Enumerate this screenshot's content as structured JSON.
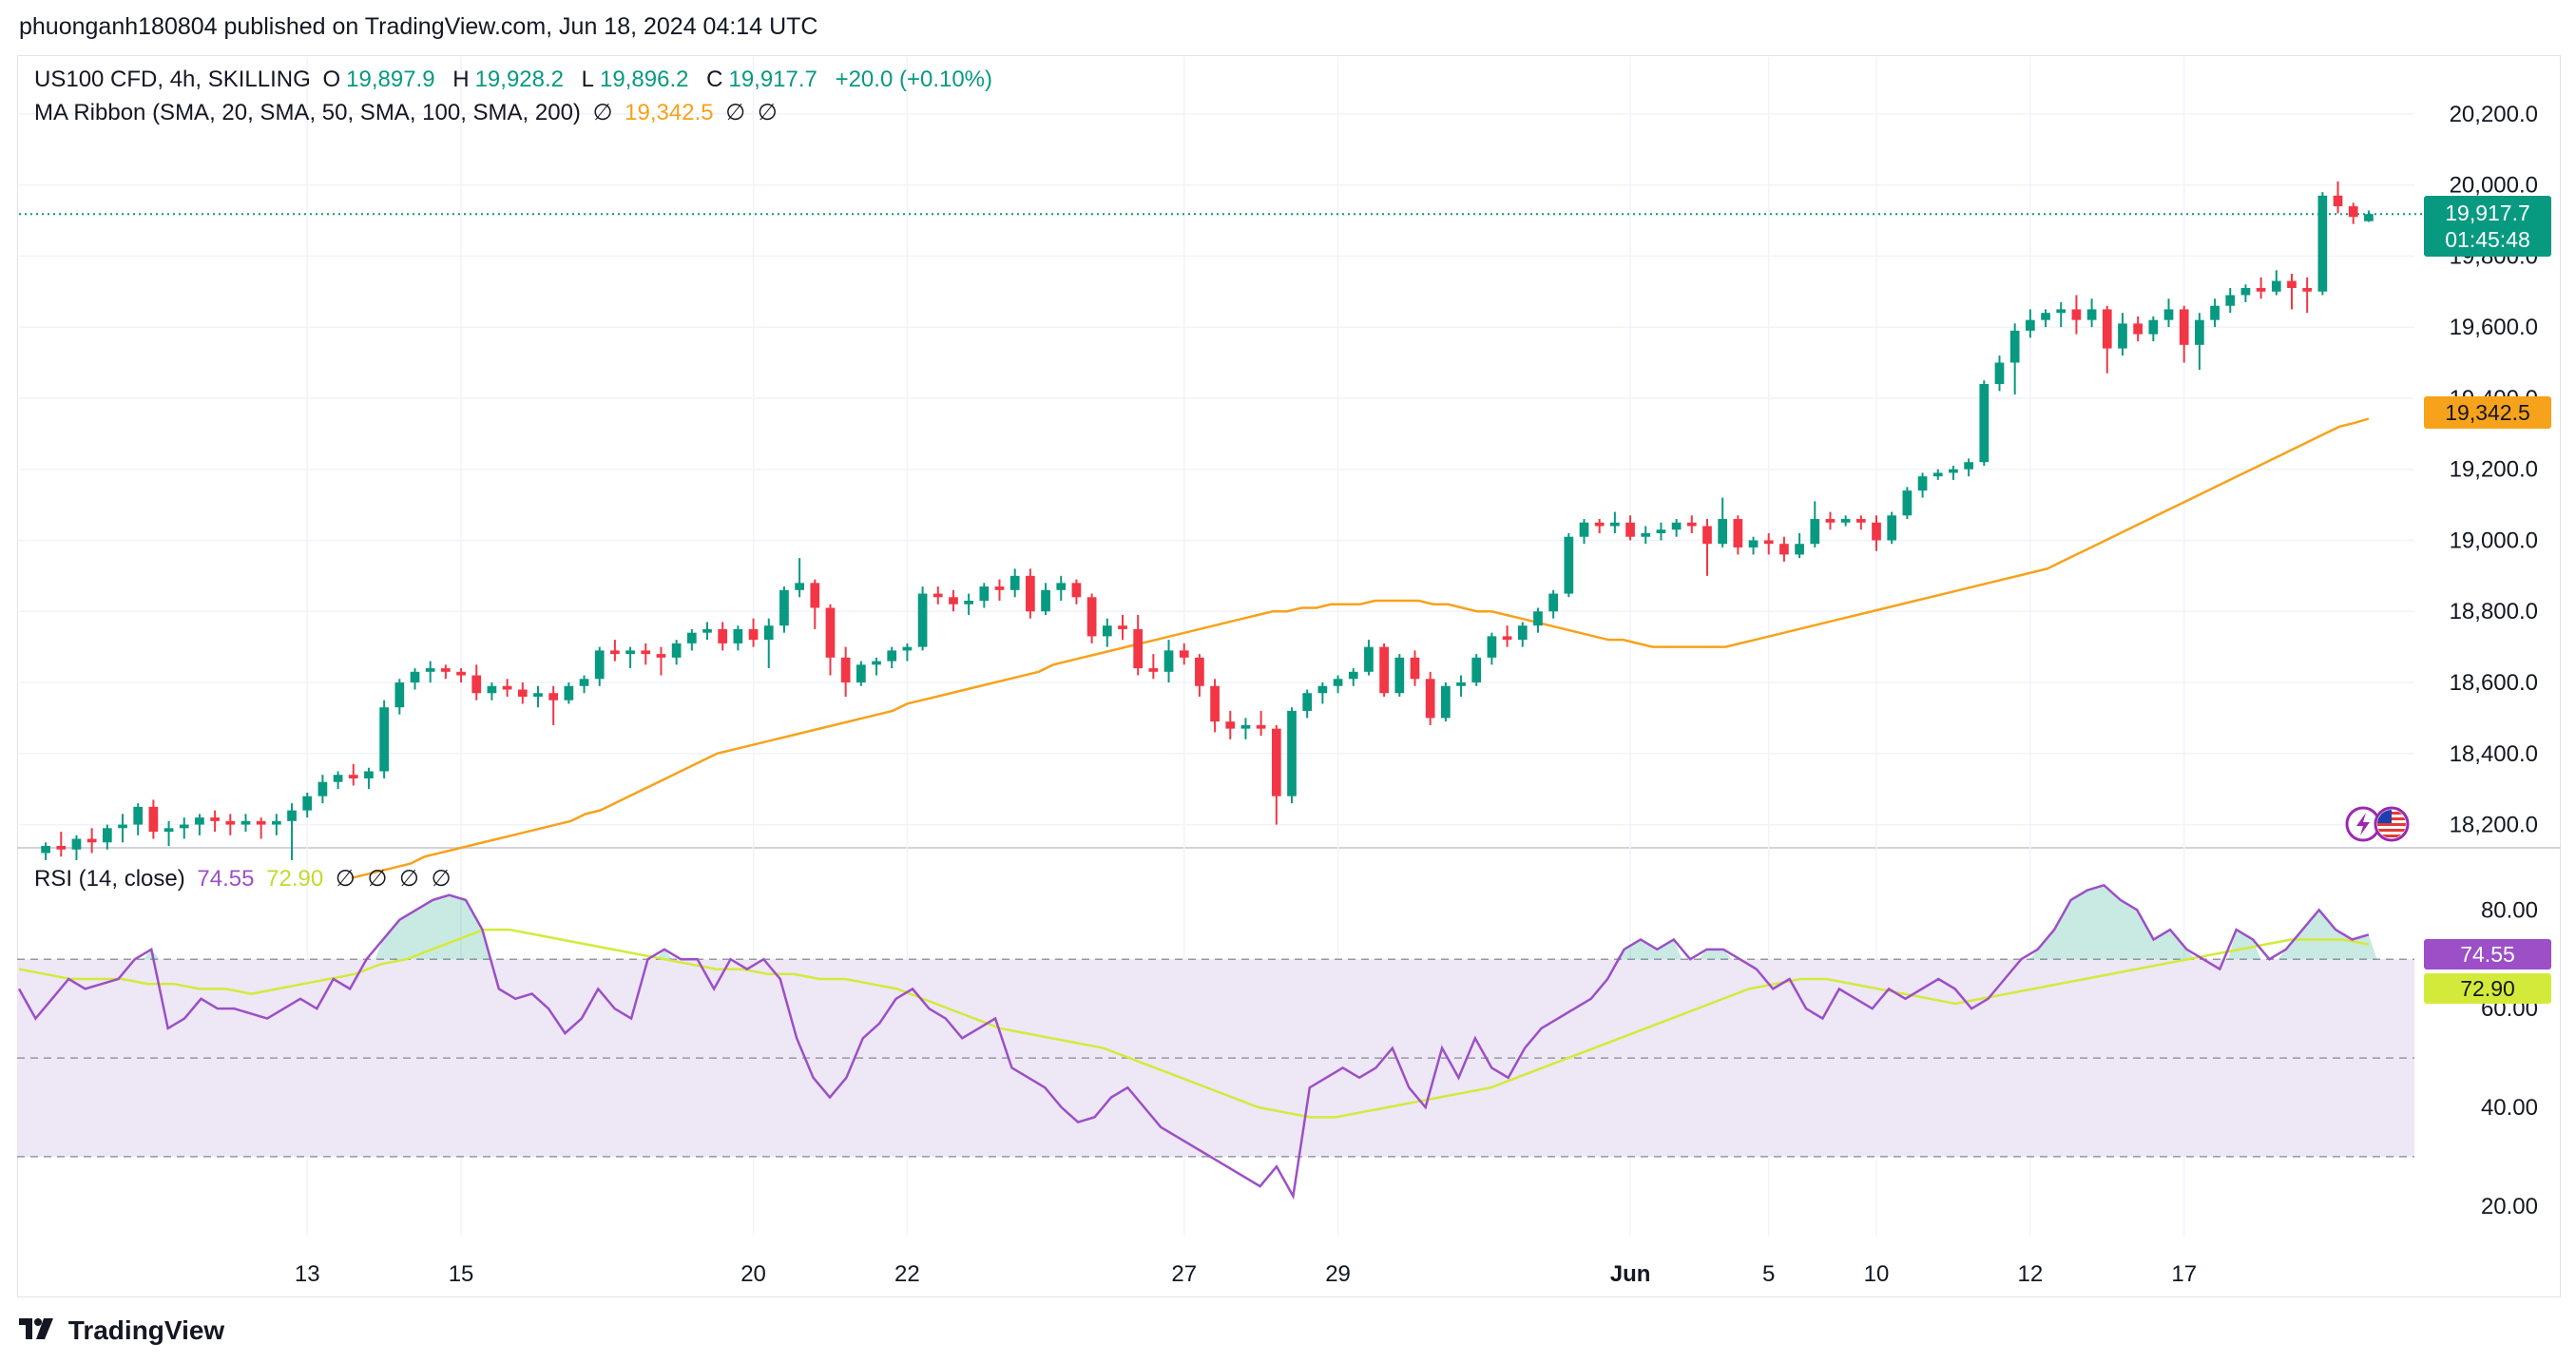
{
  "header": {
    "published": "phuonganh180804 published on TradingView.com, Jun 18, 2024 04:14 UTC"
  },
  "legend": {
    "symbol": "US100 CFD, 4h, SKILLING",
    "o_label": "O",
    "o_value": "19,897.9",
    "h_label": "H",
    "h_value": "19,928.2",
    "l_label": "L",
    "l_value": "19,896.2",
    "c_label": "C",
    "c_value": "19,917.7",
    "change": "+20.0 (+0.10%)",
    "ma_label": "MA Ribbon (SMA, 20, SMA, 50, SMA, 100, SMA, 200)",
    "ma_value": "19,342.5",
    "empty_symbol": "∅"
  },
  "rsi_legend": {
    "label": "RSI (14, close)",
    "rsi": "74.55",
    "ma": "72.90"
  },
  "price_tag": {
    "price": "19,917.7",
    "countdown": "01:45:48"
  },
  "ma_tag": "19,342.5",
  "rsi_tags": {
    "rsi": "74.55",
    "ma": "72.90"
  },
  "footer": {
    "brand": "TradingView",
    "logo": "tradingview-logo"
  },
  "icons": [
    "lightning-icon",
    "us-flag-icon"
  ],
  "colors": {
    "up": "#089981",
    "down": "#f23645",
    "ma": "#f7a21b",
    "rsi": "#9c4fc6",
    "rsi_ma": "#d4ea3a",
    "band": "#ede7f6"
  },
  "chart_data": {
    "type": "candlestick",
    "timeframe": "4h",
    "price_axis": {
      "ticks": [
        "18,200.0",
        "18,400.0",
        "18,600.0",
        "18,800.0",
        "19,000.0",
        "19,200.0",
        "19,400.0",
        "19,600.0",
        "19,800.0",
        "20,000.0",
        "20,200.0"
      ]
    },
    "x_labels": [
      "13",
      "15",
      "20",
      "22",
      "27",
      "29",
      "Jun",
      "5",
      "10",
      "12",
      "17"
    ],
    "candles": [
      [
        18120,
        18150,
        18100,
        18140
      ],
      [
        18140,
        18180,
        18110,
        18130
      ],
      [
        18130,
        18170,
        18100,
        18160
      ],
      [
        18160,
        18190,
        18120,
        18150
      ],
      [
        18150,
        18200,
        18130,
        18190
      ],
      [
        18190,
        18230,
        18150,
        18200
      ],
      [
        18200,
        18260,
        18170,
        18250
      ],
      [
        18250,
        18270,
        18160,
        18180
      ],
      [
        18180,
        18210,
        18140,
        18190
      ],
      [
        18190,
        18220,
        18160,
        18200
      ],
      [
        18200,
        18230,
        18170,
        18220
      ],
      [
        18220,
        18240,
        18180,
        18210
      ],
      [
        18210,
        18230,
        18170,
        18200
      ],
      [
        18200,
        18230,
        18180,
        18210
      ],
      [
        18210,
        18220,
        18160,
        18200
      ],
      [
        18200,
        18230,
        18170,
        18210
      ],
      [
        18210,
        18260,
        18100,
        18240
      ],
      [
        18240,
        18290,
        18220,
        18280
      ],
      [
        18280,
        18340,
        18260,
        18320
      ],
      [
        18320,
        18350,
        18300,
        18340
      ],
      [
        18340,
        18370,
        18310,
        18330
      ],
      [
        18330,
        18360,
        18300,
        18350
      ],
      [
        18350,
        18550,
        18330,
        18530
      ],
      [
        18530,
        18610,
        18510,
        18600
      ],
      [
        18600,
        18640,
        18580,
        18630
      ],
      [
        18630,
        18660,
        18600,
        18640
      ],
      [
        18640,
        18650,
        18610,
        18630
      ],
      [
        18630,
        18640,
        18600,
        18620
      ],
      [
        18620,
        18650,
        18550,
        18570
      ],
      [
        18570,
        18600,
        18550,
        18590
      ],
      [
        18590,
        18610,
        18560,
        18580
      ],
      [
        18580,
        18600,
        18540,
        18560
      ],
      [
        18560,
        18590,
        18530,
        18570
      ],
      [
        18570,
        18590,
        18480,
        18550
      ],
      [
        18550,
        18600,
        18540,
        18590
      ],
      [
        18590,
        18620,
        18570,
        18610
      ],
      [
        18610,
        18700,
        18590,
        18690
      ],
      [
        18690,
        18720,
        18660,
        18680
      ],
      [
        18680,
        18700,
        18640,
        18690
      ],
      [
        18690,
        18710,
        18650,
        18680
      ],
      [
        18680,
        18700,
        18620,
        18670
      ],
      [
        18670,
        18720,
        18650,
        18710
      ],
      [
        18710,
        18750,
        18690,
        18740
      ],
      [
        18740,
        18770,
        18720,
        18750
      ],
      [
        18750,
        18770,
        18690,
        18710
      ],
      [
        18710,
        18760,
        18690,
        18750
      ],
      [
        18750,
        18780,
        18700,
        18720
      ],
      [
        18720,
        18780,
        18640,
        18760
      ],
      [
        18760,
        18870,
        18740,
        18860
      ],
      [
        18860,
        18950,
        18840,
        18880
      ],
      [
        18880,
        18890,
        18750,
        18810
      ],
      [
        18810,
        18820,
        18620,
        18670
      ],
      [
        18670,
        18700,
        18560,
        18600
      ],
      [
        18600,
        18660,
        18590,
        18650
      ],
      [
        18650,
        18670,
        18620,
        18660
      ],
      [
        18660,
        18700,
        18640,
        18690
      ],
      [
        18690,
        18710,
        18660,
        18700
      ],
      [
        18700,
        18870,
        18690,
        18850
      ],
      [
        18850,
        18870,
        18820,
        18840
      ],
      [
        18840,
        18860,
        18800,
        18820
      ],
      [
        18820,
        18850,
        18790,
        18830
      ],
      [
        18830,
        18880,
        18810,
        18870
      ],
      [
        18870,
        18890,
        18830,
        18860
      ],
      [
        18860,
        18920,
        18840,
        18900
      ],
      [
        18900,
        18920,
        18780,
        18800
      ],
      [
        18800,
        18880,
        18790,
        18860
      ],
      [
        18860,
        18900,
        18830,
        18880
      ],
      [
        18880,
        18890,
        18820,
        18840
      ],
      [
        18840,
        18850,
        18710,
        18730
      ],
      [
        18730,
        18780,
        18700,
        18760
      ],
      [
        18760,
        18790,
        18720,
        18750
      ],
      [
        18750,
        18790,
        18620,
        18640
      ],
      [
        18640,
        18680,
        18610,
        18630
      ],
      [
        18630,
        18720,
        18600,
        18690
      ],
      [
        18690,
        18710,
        18650,
        18670
      ],
      [
        18670,
        18680,
        18560,
        18590
      ],
      [
        18590,
        18610,
        18460,
        18490
      ],
      [
        18490,
        18520,
        18440,
        18470
      ],
      [
        18470,
        18500,
        18440,
        18480
      ],
      [
        18480,
        18520,
        18450,
        18470
      ],
      [
        18470,
        18480,
        18200,
        18280
      ],
      [
        18280,
        18530,
        18260,
        18520
      ],
      [
        18520,
        18580,
        18500,
        18570
      ],
      [
        18570,
        18600,
        18540,
        18590
      ],
      [
        18590,
        18620,
        18570,
        18610
      ],
      [
        18610,
        18640,
        18590,
        18630
      ],
      [
        18630,
        18720,
        18620,
        18700
      ],
      [
        18700,
        18710,
        18560,
        18570
      ],
      [
        18570,
        18680,
        18560,
        18670
      ],
      [
        18670,
        18690,
        18590,
        18610
      ],
      [
        18610,
        18630,
        18480,
        18500
      ],
      [
        18500,
        18600,
        18490,
        18590
      ],
      [
        18590,
        18620,
        18560,
        18600
      ],
      [
        18600,
        18680,
        18590,
        18670
      ],
      [
        18670,
        18740,
        18650,
        18730
      ],
      [
        18730,
        18760,
        18700,
        18720
      ],
      [
        18720,
        18770,
        18700,
        18760
      ],
      [
        18760,
        18810,
        18740,
        18800
      ],
      [
        18800,
        18860,
        18780,
        18850
      ],
      [
        18850,
        19020,
        18840,
        19010
      ],
      [
        19010,
        19060,
        18990,
        19050
      ],
      [
        19050,
        19060,
        19020,
        19040
      ],
      [
        19040,
        19080,
        19020,
        19050
      ],
      [
        19050,
        19070,
        19000,
        19010
      ],
      [
        19010,
        19040,
        18990,
        19020
      ],
      [
        19020,
        19050,
        19000,
        19030
      ],
      [
        19030,
        19060,
        19010,
        19050
      ],
      [
        19050,
        19070,
        19020,
        19040
      ],
      [
        19040,
        19060,
        18900,
        18990
      ],
      [
        18990,
        19120,
        18980,
        19060
      ],
      [
        19060,
        19070,
        18960,
        18980
      ],
      [
        18980,
        19010,
        18960,
        19000
      ],
      [
        19000,
        19020,
        18960,
        18990
      ],
      [
        18990,
        19010,
        18940,
        18960
      ],
      [
        18960,
        19020,
        18950,
        18990
      ],
      [
        18990,
        19110,
        18980,
        19060
      ],
      [
        19060,
        19080,
        19030,
        19050
      ],
      [
        19050,
        19070,
        19040,
        19060
      ],
      [
        19060,
        19070,
        19030,
        19050
      ],
      [
        19050,
        19070,
        18970,
        19000
      ],
      [
        19000,
        19080,
        18990,
        19070
      ],
      [
        19070,
        19150,
        19060,
        19140
      ],
      [
        19140,
        19190,
        19120,
        19180
      ],
      [
        19180,
        19200,
        19170,
        19190
      ],
      [
        19190,
        19210,
        19170,
        19200
      ],
      [
        19200,
        19230,
        19180,
        19220
      ],
      [
        19220,
        19450,
        19210,
        19440
      ],
      [
        19440,
        19520,
        19420,
        19500
      ],
      [
        19500,
        19610,
        19410,
        19590
      ],
      [
        19590,
        19650,
        19570,
        19620
      ],
      [
        19620,
        19650,
        19600,
        19640
      ],
      [
        19640,
        19670,
        19600,
        19650
      ],
      [
        19650,
        19690,
        19580,
        19620
      ],
      [
        19620,
        19680,
        19600,
        19650
      ],
      [
        19650,
        19660,
        19470,
        19540
      ],
      [
        19540,
        19640,
        19520,
        19610
      ],
      [
        19610,
        19630,
        19560,
        19580
      ],
      [
        19580,
        19630,
        19560,
        19620
      ],
      [
        19620,
        19680,
        19600,
        19650
      ],
      [
        19650,
        19660,
        19500,
        19550
      ],
      [
        19550,
        19640,
        19480,
        19620
      ],
      [
        19620,
        19680,
        19600,
        19660
      ],
      [
        19660,
        19710,
        19640,
        19690
      ],
      [
        19690,
        19720,
        19670,
        19710
      ],
      [
        19710,
        19740,
        19680,
        19700
      ],
      [
        19700,
        19760,
        19690,
        19730
      ],
      [
        19730,
        19750,
        19650,
        19710
      ],
      [
        19710,
        19740,
        19640,
        19700
      ],
      [
        19700,
        19980,
        19690,
        19970
      ],
      [
        19970,
        20010,
        19920,
        19940
      ],
      [
        19940,
        19950,
        19890,
        19910
      ],
      [
        19898,
        19928,
        19896,
        19918
      ]
    ],
    "ma_series": [
      18050,
      18060,
      18070,
      18080,
      18090,
      18110,
      18120,
      18130,
      18140,
      18150,
      18160,
      18170,
      18180,
      18190,
      18200,
      18210,
      18230,
      18240,
      18260,
      18280,
      18300,
      18320,
      18340,
      18360,
      18380,
      18400,
      18410,
      18420,
      18430,
      18440,
      18450,
      18460,
      18470,
      18480,
      18490,
      18500,
      18510,
      18520,
      18540,
      18550,
      18560,
      18570,
      18580,
      18590,
      18600,
      18610,
      18620,
      18630,
      18650,
      18660,
      18670,
      18680,
      18690,
      18700,
      18710,
      18720,
      18730,
      18740,
      18750,
      18760,
      18770,
      18780,
      18790,
      18800,
      18800,
      18810,
      18810,
      18820,
      18820,
      18820,
      18830,
      18830,
      18830,
      18830,
      18820,
      18820,
      18810,
      18800,
      18800,
      18790,
      18780,
      18770,
      18760,
      18750,
      18740,
      18730,
      18720,
      18720,
      18710,
      18700,
      18700,
      18700,
      18700,
      18700,
      18700,
      18710,
      18720,
      18730,
      18740,
      18750,
      18760,
      18770,
      18780,
      18790,
      18800,
      18810,
      18820,
      18830,
      18840,
      18850,
      18860,
      18870,
      18880,
      18890,
      18900,
      18910,
      18920,
      18940,
      18960,
      18980,
      19000,
      19020,
      19040,
      19060,
      19080,
      19100,
      19120,
      19140,
      19160,
      19180,
      19200,
      19220,
      19240,
      19260,
      19280,
      19300,
      19320,
      19330,
      19342
    ],
    "rsi": [
      64,
      58,
      62,
      66,
      64,
      65,
      66,
      70,
      72,
      56,
      58,
      62,
      60,
      60,
      59,
      58,
      60,
      62,
      60,
      66,
      64,
      70,
      74,
      78,
      80,
      82,
      83,
      82,
      76,
      64,
      62,
      63,
      60,
      55,
      58,
      64,
      60,
      58,
      70,
      72,
      70,
      70,
      64,
      70,
      68,
      70,
      66,
      54,
      46,
      42,
      46,
      54,
      57,
      62,
      64,
      60,
      58,
      54,
      56,
      58,
      48,
      46,
      44,
      40,
      37,
      38,
      42,
      44,
      40,
      36,
      34,
      32,
      30,
      28,
      26,
      24,
      28,
      22,
      44,
      46,
      48,
      46,
      48,
      52,
      44,
      40,
      52,
      46,
      54,
      48,
      46,
      52,
      56,
      58,
      60,
      62,
      66,
      72,
      74,
      72,
      74,
      70,
      72,
      72,
      70,
      68,
      64,
      66,
      60,
      58,
      64,
      62,
      60,
      64,
      62,
      64,
      66,
      64,
      60,
      62,
      66,
      70,
      72,
      76,
      82,
      84,
      85,
      82,
      80,
      74,
      76,
      72,
      70,
      68,
      76,
      74,
      70,
      72,
      76,
      80,
      76,
      74,
      75
    ],
    "rsi_ma": [
      68,
      67,
      66,
      66,
      66,
      65,
      65,
      64,
      64,
      63,
      64,
      65,
      66,
      67,
      69,
      70,
      72,
      74,
      76,
      76,
      75,
      74,
      73,
      72,
      71,
      70,
      69,
      68,
      68,
      67,
      67,
      66,
      66,
      65,
      64,
      62,
      60,
      58,
      56,
      55,
      54,
      53,
      52,
      50,
      48,
      46,
      44,
      42,
      40,
      39,
      38,
      38,
      39,
      40,
      41,
      42,
      43,
      44,
      46,
      48,
      50,
      52,
      54,
      56,
      58,
      60,
      62,
      64,
      65,
      66,
      66,
      65,
      64,
      63,
      62,
      61,
      62,
      63,
      64,
      65,
      66,
      67,
      68,
      69,
      70,
      71,
      72,
      73,
      74,
      74,
      74,
      73
    ],
    "rsi_axis": {
      "ticks": [
        "20.00",
        "40.00",
        "60.00",
        "80.00"
      ],
      "bands": [
        30,
        50,
        70
      ]
    }
  }
}
